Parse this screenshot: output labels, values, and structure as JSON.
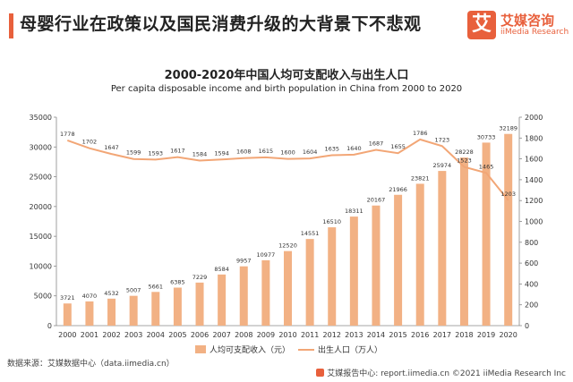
{
  "header": {
    "headline": "母婴行业在政策以及国民消费升级的大背景下不悲观"
  },
  "logo": {
    "mark": "艾",
    "name_cn": "艾媒咨询",
    "name_en": "iiMedia Research"
  },
  "footer": {
    "source": "数据来源：艾媒数据中心（data.iimedia.cn）",
    "credit": "艾媒报告中心: report.iimedia.cn  ©2021  iiMedia Research  Inc"
  },
  "colors": {
    "accent": "#e8603c",
    "bar": "#f2b184",
    "line": "#f2a676"
  },
  "chart_data": {
    "type": "bar",
    "title": "2000-2020年中国人均可支配收入与出生人口",
    "subtitle": "Per capita disposable income and birth population in China from 2000 to 2020",
    "categories": [
      "2000",
      "2001",
      "2002",
      "2003",
      "2004",
      "2005",
      "2006",
      "2007",
      "2008",
      "2009",
      "2010",
      "2011",
      "2012",
      "2013",
      "2014",
      "2015",
      "2016",
      "2017",
      "2018",
      "2019",
      "2020"
    ],
    "series": [
      {
        "name": "人均可支配收入（元）",
        "type": "bar",
        "axis": "left",
        "values": [
          3721,
          4070,
          4532,
          5007,
          5661,
          6385,
          7229,
          8584,
          9957,
          10977,
          12520,
          14551,
          16510,
          18311,
          20167,
          21966,
          23821,
          25974,
          28228,
          30733,
          32189
        ]
      },
      {
        "name": "出生人口（万人）",
        "type": "line",
        "axis": "right",
        "values": [
          1778,
          1702,
          1647,
          1599,
          1593,
          1617,
          1584,
          1594,
          1608,
          1615,
          1600,
          1604,
          1635,
          1640,
          1687,
          1655,
          1786,
          1723,
          1523,
          1465,
          1203
        ]
      }
    ],
    "ylim_left": [
      0,
      35000
    ],
    "yticks_left": [
      0,
      5000,
      10000,
      15000,
      20000,
      25000,
      30000,
      35000
    ],
    "ylim_right": [
      0,
      2000
    ],
    "yticks_right": [
      0,
      200,
      400,
      600,
      800,
      1000,
      1200,
      1400,
      1600,
      1800,
      2000
    ],
    "grid": false,
    "legend_position": "bottom"
  }
}
